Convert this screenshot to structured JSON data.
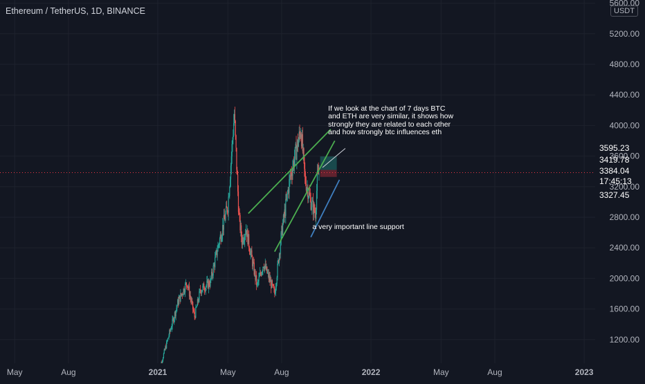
{
  "header": {
    "symbol_line": "Ethereum / TetherUS, 1D, BINANCE",
    "currency": "USDT"
  },
  "price_axis": {
    "ticks": [
      "5600.00",
      "5200.00",
      "4800.00",
      "4400.00",
      "4000.00",
      "3600.00",
      "3200.00",
      "2800.00",
      "2400.00",
      "2000.00",
      "1600.00",
      "1200.00"
    ],
    "tags": [
      {
        "label": "3595.23",
        "color": "#26a69a"
      },
      {
        "label": "3419.78",
        "color": "#787b86"
      },
      {
        "label": "3384.04",
        "sub": "17:45:13",
        "color": "#f23645"
      },
      {
        "label": "3327.45",
        "color": "#f23645"
      }
    ]
  },
  "time_axis": {
    "ticks": [
      "May",
      "Aug",
      "2021",
      "May",
      "Aug",
      "2022",
      "May",
      "Aug",
      "2023"
    ]
  },
  "annotations": {
    "note_1": [
      "If we look at the chart of 7 days BTC",
      "and ETH are very similar, it shows how",
      "strongly they are related to each other",
      "and how strongly btc influences eth"
    ],
    "note_2": "a very important line support"
  },
  "chart_data": {
    "type": "candlestick",
    "title": "Ethereum / TetherUS, 1D, BINANCE",
    "y_unit": "USDT",
    "ylim": [
      900,
      5600
    ],
    "last_price": 3384.04,
    "countdown": "17:45:13",
    "x_ticks": [
      "May",
      "Aug",
      "2021",
      "May",
      "Aug",
      "2022",
      "May",
      "Aug",
      "2023"
    ],
    "series": [
      {
        "date": "2021-01-01",
        "close": 730
      },
      {
        "date": "2021-02-05",
        "close": 1700
      },
      {
        "date": "2021-02-20",
        "close": 1950
      },
      {
        "date": "2021-03-05",
        "close": 1500
      },
      {
        "date": "2021-03-15",
        "close": 1850
      },
      {
        "date": "2021-04-01",
        "close": 1950
      },
      {
        "date": "2021-04-15",
        "close": 2450
      },
      {
        "date": "2021-05-01",
        "close": 2950
      },
      {
        "date": "2021-05-12",
        "close": 4150
      },
      {
        "date": "2021-05-20",
        "close": 2800
      },
      {
        "date": "2021-05-25",
        "close": 2500
      },
      {
        "date": "2021-06-01",
        "close": 2650
      },
      {
        "date": "2021-06-20",
        "close": 1900
      },
      {
        "date": "2021-07-01",
        "close": 2200
      },
      {
        "date": "2021-07-20",
        "close": 1800
      },
      {
        "date": "2021-08-01",
        "close": 2600
      },
      {
        "date": "2021-08-15",
        "close": 3300
      },
      {
        "date": "2021-09-03",
        "close": 3950
      },
      {
        "date": "2021-09-10",
        "close": 3300
      },
      {
        "date": "2021-09-20",
        "close": 3000
      },
      {
        "date": "2021-09-28",
        "close": 2850
      },
      {
        "date": "2021-10-01",
        "close": 3300
      },
      {
        "date": "2021-10-04",
        "close": 3384
      }
    ]
  }
}
